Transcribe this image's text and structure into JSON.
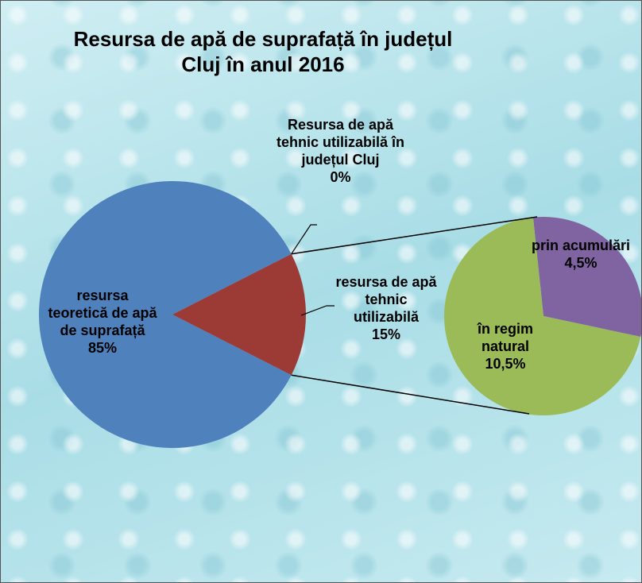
{
  "chart_data": {
    "type": "pie-of-pie",
    "title": "Resursa de apă de suprafață în județul Cluj în anul 2016",
    "categories": [
      "resursa teoretică de apă de suprafață",
      "Resursa de apă tehnic utilizabilă în județul Cluj",
      "resursa de apă tehnic utilizabilă"
    ],
    "values": [
      85,
      0,
      15
    ],
    "value_labels": [
      "85%",
      "0%",
      "15%"
    ],
    "colors": [
      "#4f81bd",
      "#9c3b36",
      "#9c3b36"
    ],
    "secondary": {
      "categories": [
        "prin acumulări",
        "în regim natural"
      ],
      "values": [
        4.5,
        10.5
      ],
      "value_labels": [
        "4,5%",
        "10,5%"
      ],
      "colors": [
        "#8064a2",
        "#9bbb59"
      ]
    }
  }
}
